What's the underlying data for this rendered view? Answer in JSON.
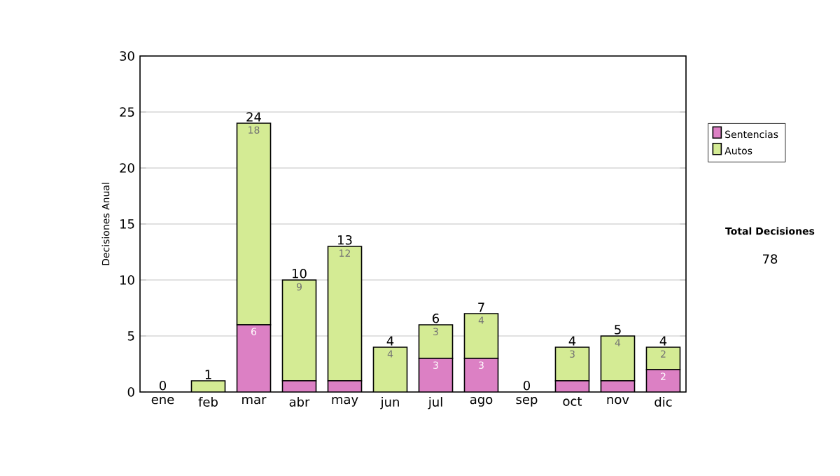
{
  "chart_data": {
    "type": "bar",
    "stacked": true,
    "ylabel": "Decisiones Anual",
    "categories": [
      "ene",
      "feb",
      "mar",
      "abr",
      "may",
      "jun",
      "jul",
      "ago",
      "sep",
      "oct",
      "nov",
      "dic"
    ],
    "series": [
      {
        "name": "Sentencias",
        "color": "#dc80c4",
        "values": [
          0,
          0,
          6,
          1,
          1,
          0,
          3,
          3,
          0,
          1,
          1,
          2
        ],
        "value_labels": [
          null,
          null,
          "6",
          null,
          null,
          null,
          "3",
          "3",
          null,
          null,
          null,
          "2"
        ]
      },
      {
        "name": "Autos",
        "color": "#d4eb94",
        "values": [
          0,
          1,
          18,
          9,
          12,
          4,
          3,
          4,
          0,
          3,
          4,
          2
        ],
        "value_labels": [
          null,
          null,
          "18",
          "9",
          "12",
          "4",
          "3",
          "4",
          null,
          "3",
          "4",
          "2"
        ]
      }
    ],
    "totals": [
      "0",
      "1",
      "24",
      "10",
      "13",
      "4",
      "6",
      "7",
      "0",
      "4",
      "5",
      "4"
    ],
    "ylim": [
      0,
      30
    ],
    "yticks": [
      0,
      5,
      10,
      15,
      20,
      25,
      30
    ],
    "grid": "y",
    "legend": "right",
    "annotations": [
      "Total Decisiones",
      "78"
    ]
  }
}
